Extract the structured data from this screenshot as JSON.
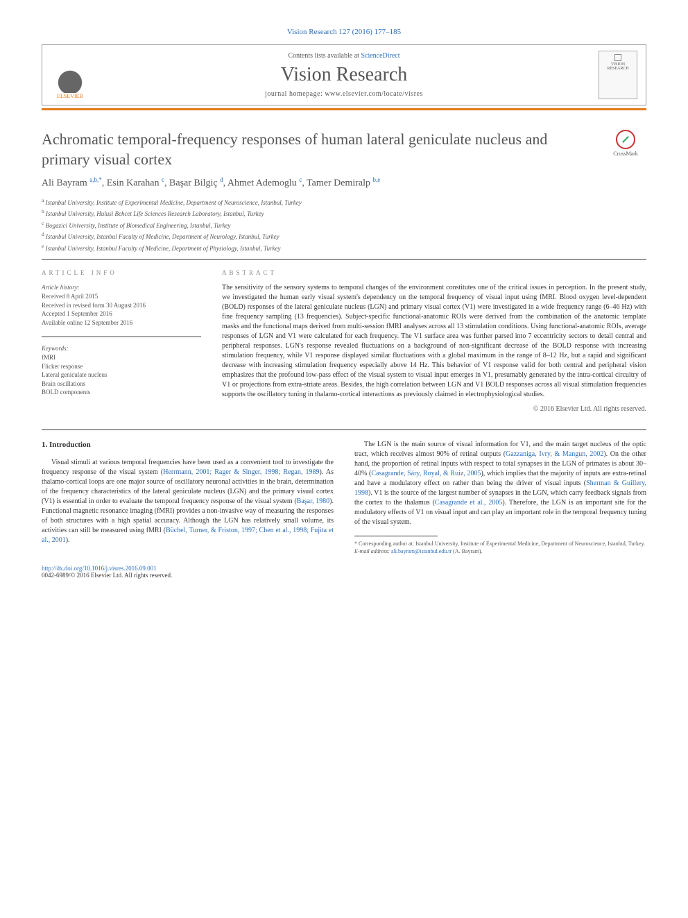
{
  "header": {
    "citation": "Vision Research 127 (2016) 177–185",
    "contents_prefix": "Contents lists available at ",
    "contents_link": "ScienceDirect",
    "journal_name": "Vision Research",
    "homepage_label": "journal homepage: www.elsevier.com/locate/visres",
    "publisher_name": "ELSEVIER",
    "cover_label": "VISION RESEARCH"
  },
  "crossmark_label": "CrossMark",
  "title": "Achromatic temporal-frequency responses of human lateral geniculate nucleus and primary visual cortex",
  "authors_html": "Ali Bayram <sup>a,b,*</sup>, Esin Karahan <sup>c</sup>, Başar Bilgiç <sup>d</sup>, Ahmet Ademoglu <sup>c</sup>, Tamer Demiralp <sup>b,e</sup>",
  "affiliations": [
    {
      "sup": "a",
      "text": "Istanbul University, Institute of Experimental Medicine, Department of Neuroscience, Istanbul, Turkey"
    },
    {
      "sup": "b",
      "text": "Istanbul University, Hulusi Behcet Life Sciences Research Laboratory, Istanbul, Turkey"
    },
    {
      "sup": "c",
      "text": "Bogazici University, Institute of Biomedical Engineering, Istanbul, Turkey"
    },
    {
      "sup": "d",
      "text": "Istanbul University, Istanbul Faculty of Medicine, Department of Neurology, Istanbul, Turkey"
    },
    {
      "sup": "e",
      "text": "Istanbul University, Istanbul Faculty of Medicine, Department of Physiology, Istanbul, Turkey"
    }
  ],
  "article_info": {
    "label": "ARTICLE INFO",
    "history_label": "Article history:",
    "history": [
      "Received 8 April 2015",
      "Received in revised form 30 August 2016",
      "Accepted 1 September 2016",
      "Available online 12 September 2016"
    ],
    "keywords_label": "Keywords:",
    "keywords": [
      "fMRI",
      "Flicker response",
      "Lateral geniculate nucleus",
      "Brain oscillations",
      "BOLD components"
    ]
  },
  "abstract": {
    "label": "ABSTRACT",
    "text": "The sensitivity of the sensory systems to temporal changes of the environment constitutes one of the critical issues in perception. In the present study, we investigated the human early visual system's dependency on the temporal frequency of visual input using fMRI. Blood oxygen level-dependent (BOLD) responses of the lateral geniculate nucleus (LGN) and primary visual cortex (V1) were investigated in a wide frequency range (6–46 Hz) with fine frequency sampling (13 frequencies). Subject-specific functional-anatomic ROIs were derived from the combination of the anatomic template masks and the functional maps derived from multi-session fMRI analyses across all 13 stimulation conditions. Using functional-anatomic ROIs, average responses of LGN and V1 were calculated for each frequency. The V1 surface area was further parsed into 7 eccentricity sectors to detail central and peripheral responses. LGN's response revealed fluctuations on a background of non-significant decrease of the BOLD response with increasing stimulation frequency, while V1 response displayed similar fluctuations with a global maximum in the range of 8–12 Hz, but a rapid and significant decrease with increasing stimulation frequency especially above 14 Hz. This behavior of V1 response valid for both central and peripheral vision emphasizes that the profound low-pass effect of the visual system to visual input emerges in V1, presumably generated by the intra-cortical circuitry of V1 or projections from extra-striate areas. Besides, the high correlation between LGN and V1 BOLD responses across all visual stimulation frequencies supports the oscillatory tuning in thalamo-cortical interactions as previously claimed in electrophysiological studies.",
    "copyright": "© 2016 Elsevier Ltd. All rights reserved."
  },
  "intro": {
    "heading": "1. Introduction",
    "p1_pre": "Visual stimuli at various temporal frequencies have been used as a convenient tool to investigate the frequency response of the visual system (",
    "p1_link1": "Herrmann, 2001; Rager & Singer, 1998; Regan, 1989",
    "p1_mid1": "). As thalamo-cortical loops are one major source of oscillatory neuronal activities in the brain, determination of the frequency characteristics of the lateral geniculate nucleus (LGN) and the primary visual cortex (V1) is essential in order to evaluate the temporal frequency response of the visual system (",
    "p1_link2": "Başar, 1980",
    "p1_mid2": "). Functional magnetic resonance imaging (fMRI) provides a non-invasive way of measuring the responses of both structures with a high spatial accuracy. Although the LGN has relatively small volume, its activities can still be measured using fMRI (",
    "p1_link3": "Büchel, Turner, & Friston, 1997; Chen et al., 1998; Fujita et al., 2001",
    "p1_post": ").",
    "p2_pre": "The LGN is the main source of visual information for V1, and the main target nucleus of the optic tract, which receives almost 90% of retinal outputs (",
    "p2_link1": "Gazzaniga, Ivry, & Mangun, 2002",
    "p2_mid1": "). On the other hand, the proportion of retinal inputs with respect to total synapses in the LGN of primates is about 30–40% (",
    "p2_link2": "Casagrande, Sáry, Royal, & Ruiz, 2005",
    "p2_mid2": "), which implies that the majority of inputs are extra-retinal and have a modulatory effect on rather than being the driver of visual inputs (",
    "p2_link3": "Sherman & Guillery, 1998",
    "p2_mid3": "). V1 is the source of the largest number of synapses in the LGN, which carry feedback signals from the cortex to the thalamus (",
    "p2_link4": "Casagrande et al., 2005",
    "p2_post": "). Therefore, the LGN is an important site for the modulatory effects of V1 on visual input and can play an important role in the temporal frequency tuning of the visual system."
  },
  "footnotes": {
    "corresp": "* Corresponding author at: Istanbul University, Institute of Experimental Medicine, Department of Neuroscience, Istanbul, Turkey.",
    "email_label": "E-mail address: ",
    "email": "ali.bayram@istanbul.edu.tr",
    "email_suffix": " (A. Bayram)."
  },
  "doi": {
    "url": "http://dx.doi.org/10.1016/j.visres.2016.09.001",
    "issn_line": "0042-6989/© 2016 Elsevier Ltd. All rights reserved."
  },
  "colors": {
    "link": "#2a6ebb",
    "accent": "#e67817",
    "text": "#333333",
    "muted": "#555555"
  }
}
